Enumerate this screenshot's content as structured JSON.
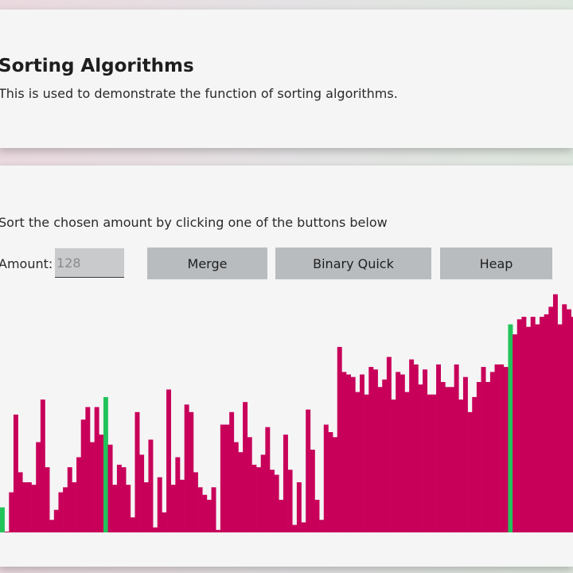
{
  "header": {
    "title": "Sorting Algorithms",
    "subtitle": "This is used to demonstrate the function of sorting algorithms."
  },
  "controls": {
    "instruction": "Sort the chosen amount by clicking one of the buttons below",
    "amount_label": "Amount:",
    "amount_placeholder": "128",
    "buttons": {
      "merge": "Merge",
      "binary_quick": "Binary Quick",
      "heap": "Heap"
    }
  },
  "colors": {
    "bar": "#c8005a",
    "highlight": "#22c35a",
    "card_bg": "#f5f5f5",
    "button_bg": "#b9bcbf"
  },
  "chart_data": {
    "type": "bar",
    "highlight_indices": [
      0,
      23,
      113
    ],
    "values": [
      10,
      0,
      16,
      47,
      24,
      20,
      20,
      19,
      36,
      53,
      26,
      5,
      9,
      16,
      18,
      26,
      20,
      30,
      45,
      50,
      36,
      50,
      39,
      54,
      35,
      19,
      27,
      26,
      19,
      6,
      48,
      31,
      20,
      37,
      2,
      22,
      8,
      57,
      19,
      30,
      21,
      51,
      48,
      24,
      18,
      15,
      13,
      18,
      1,
      43,
      43,
      48,
      36,
      32,
      52,
      38,
      27,
      26,
      31,
      42,
      25,
      23,
      13,
      39,
      25,
      3,
      20,
      4,
      49,
      33,
      13,
      5,
      43,
      40,
      38,
      74,
      64,
      63,
      62,
      56,
      63,
      55,
      66,
      65,
      58,
      61,
      70,
      53,
      64,
      63,
      56,
      69,
      67,
      59,
      65,
      55,
      55,
      67,
      60,
      58,
      58,
      67,
      53,
      62,
      48,
      54,
      60,
      66,
      60,
      64,
      67,
      67,
      66,
      83,
      79,
      85,
      86,
      82,
      86,
      83,
      86,
      87,
      90,
      95,
      83,
      91,
      89,
      86
    ]
  }
}
